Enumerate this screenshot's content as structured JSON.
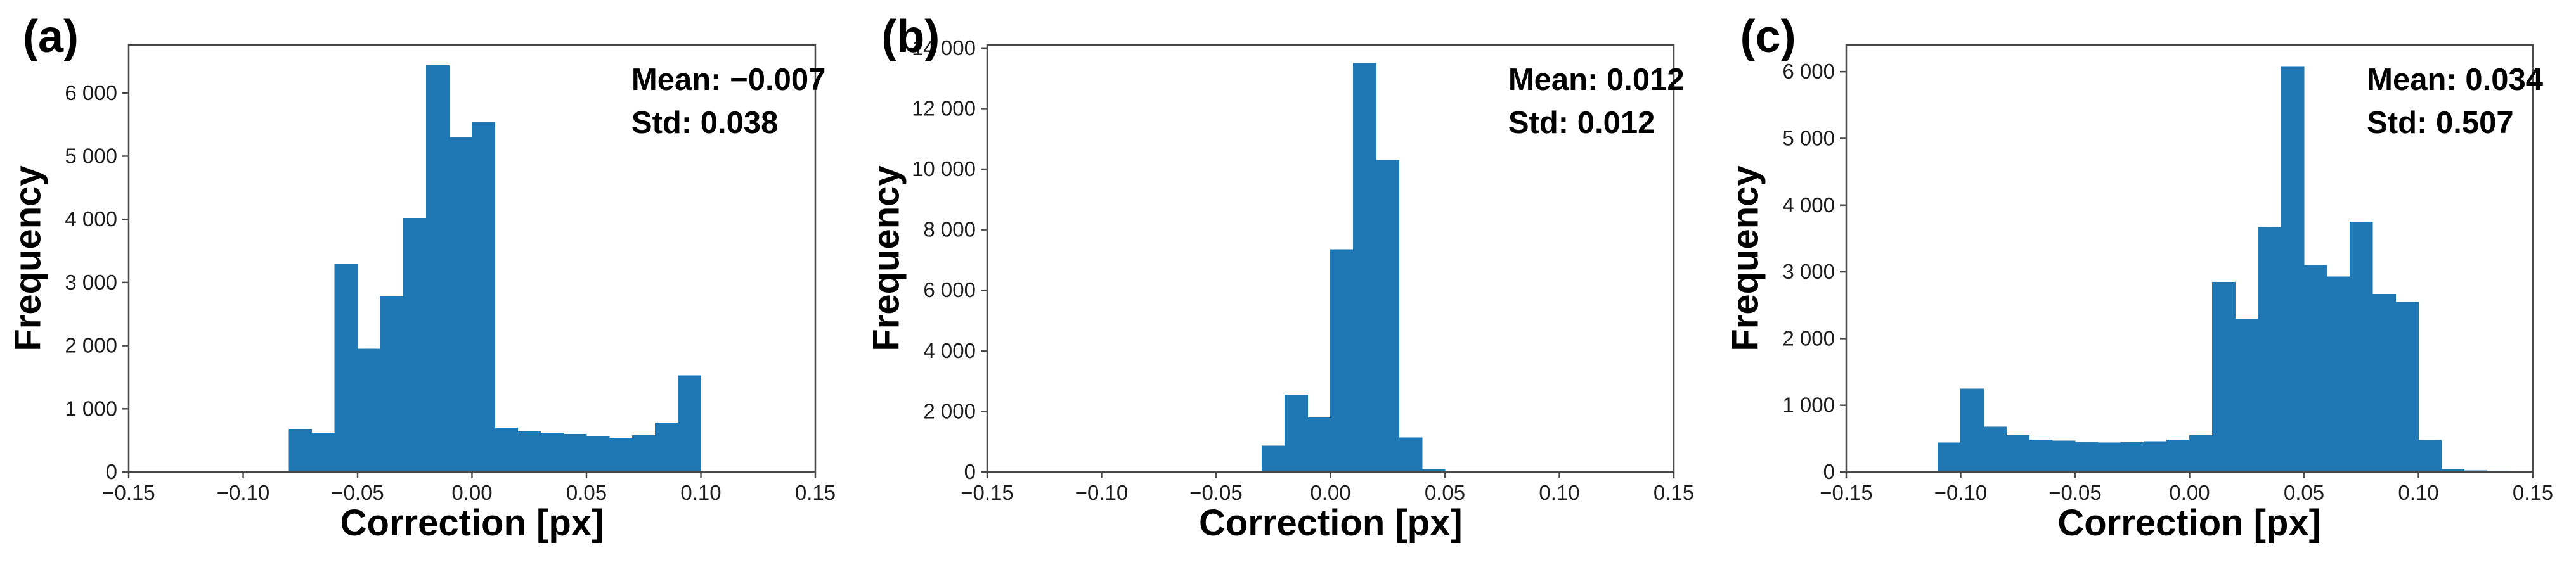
{
  "style": {
    "background": "#ffffff",
    "bar_color": "#1f77b4",
    "spine_color": "#4a4a4a",
    "tick_label_color": "#1c1c1c",
    "text_color": "#000000"
  },
  "chart_data": [
    {
      "type": "histogram",
      "panel_label": "(a)",
      "xlabel": "Correction [px]",
      "ylabel": "Frequency",
      "annotation_mean": "Mean: −0.007",
      "annotation_std": "Std: 0.038",
      "legend": "none",
      "grid": false,
      "xlim": [
        -0.15,
        0.15
      ],
      "ylim": [
        0,
        6760
      ],
      "xticks": [
        {
          "v": -0.15,
          "label": "−0.15"
        },
        {
          "v": -0.1,
          "label": "−0.10"
        },
        {
          "v": -0.05,
          "label": "−0.05"
        },
        {
          "v": 0.0,
          "label": "0.00"
        },
        {
          "v": 0.05,
          "label": "0.05"
        },
        {
          "v": 0.1,
          "label": "0.10"
        },
        {
          "v": 0.15,
          "label": "0.15"
        }
      ],
      "yticks": [
        {
          "v": 0,
          "label": "0"
        },
        {
          "v": 1000,
          "label": "1 000"
        },
        {
          "v": 2000,
          "label": "2 000"
        },
        {
          "v": 3000,
          "label": "3 000"
        },
        {
          "v": 4000,
          "label": "4 000"
        },
        {
          "v": 5000,
          "label": "5 000"
        },
        {
          "v": 6000,
          "label": "6 000"
        }
      ],
      "histogram": {
        "bin_start": -0.08,
        "bin_width": 0.01,
        "frequencies": [
          680,
          620,
          3300,
          1950,
          2780,
          4020,
          6440,
          5300,
          5540,
          700,
          640,
          620,
          600,
          570,
          540,
          580,
          780,
          1530
        ]
      }
    },
    {
      "type": "histogram",
      "panel_label": "(b)",
      "xlabel": "Correction [px]",
      "ylabel": "Frequency",
      "annotation_mean": "Mean: 0.012",
      "annotation_std": "Std: 0.012",
      "legend": "none",
      "grid": false,
      "xlim": [
        -0.15,
        0.15
      ],
      "ylim": [
        0,
        14100
      ],
      "xticks": [
        {
          "v": -0.15,
          "label": "−0.15"
        },
        {
          "v": -0.1,
          "label": "−0.10"
        },
        {
          "v": -0.05,
          "label": "−0.05"
        },
        {
          "v": 0.0,
          "label": "0.00"
        },
        {
          "v": 0.05,
          "label": "0.05"
        },
        {
          "v": 0.1,
          "label": "0.10"
        },
        {
          "v": 0.15,
          "label": "0.15"
        }
      ],
      "yticks": [
        {
          "v": 0,
          "label": "0"
        },
        {
          "v": 2000,
          "label": "2 000"
        },
        {
          "v": 4000,
          "label": "4 000"
        },
        {
          "v": 6000,
          "label": "6 000"
        },
        {
          "v": 8000,
          "label": "8 000"
        },
        {
          "v": 10000,
          "label": "10 000"
        },
        {
          "v": 12000,
          "label": "12 000"
        },
        {
          "v": 14000,
          "label": "14 000"
        }
      ],
      "histogram": {
        "bin_start": -0.03,
        "bin_width": 0.01,
        "frequencies": [
          870,
          2550,
          1800,
          7350,
          13500,
          10300,
          1140,
          90
        ]
      }
    },
    {
      "type": "histogram",
      "panel_label": "(c)",
      "xlabel": "Correction [px]",
      "ylabel": "Frequency",
      "annotation_mean": "Mean: 0.034",
      "annotation_std": "Std: 0.507",
      "legend": "none",
      "grid": false,
      "xlim": [
        -0.15,
        0.15
      ],
      "ylim": [
        0,
        6400
      ],
      "xticks": [
        {
          "v": -0.15,
          "label": "−0.15"
        },
        {
          "v": -0.1,
          "label": "−0.10"
        },
        {
          "v": -0.05,
          "label": "−0.05"
        },
        {
          "v": 0.0,
          "label": "0.00"
        },
        {
          "v": 0.05,
          "label": "0.05"
        },
        {
          "v": 0.1,
          "label": "0.10"
        },
        {
          "v": 0.15,
          "label": "0.15"
        }
      ],
      "yticks": [
        {
          "v": 0,
          "label": "0"
        },
        {
          "v": 1000,
          "label": "1 000"
        },
        {
          "v": 2000,
          "label": "2 000"
        },
        {
          "v": 3000,
          "label": "3 000"
        },
        {
          "v": 4000,
          "label": "4 000"
        },
        {
          "v": 5000,
          "label": "5 000"
        },
        {
          "v": 6000,
          "label": "6 000"
        }
      ],
      "histogram": {
        "bin_start": -0.11,
        "bin_width": 0.01,
        "frequencies": [
          440,
          1250,
          680,
          550,
          485,
          470,
          450,
          440,
          445,
          460,
          485,
          550,
          2850,
          2300,
          3670,
          6080,
          3100,
          2930,
          3750,
          2670,
          2550,
          480,
          45,
          25,
          15
        ]
      }
    }
  ]
}
